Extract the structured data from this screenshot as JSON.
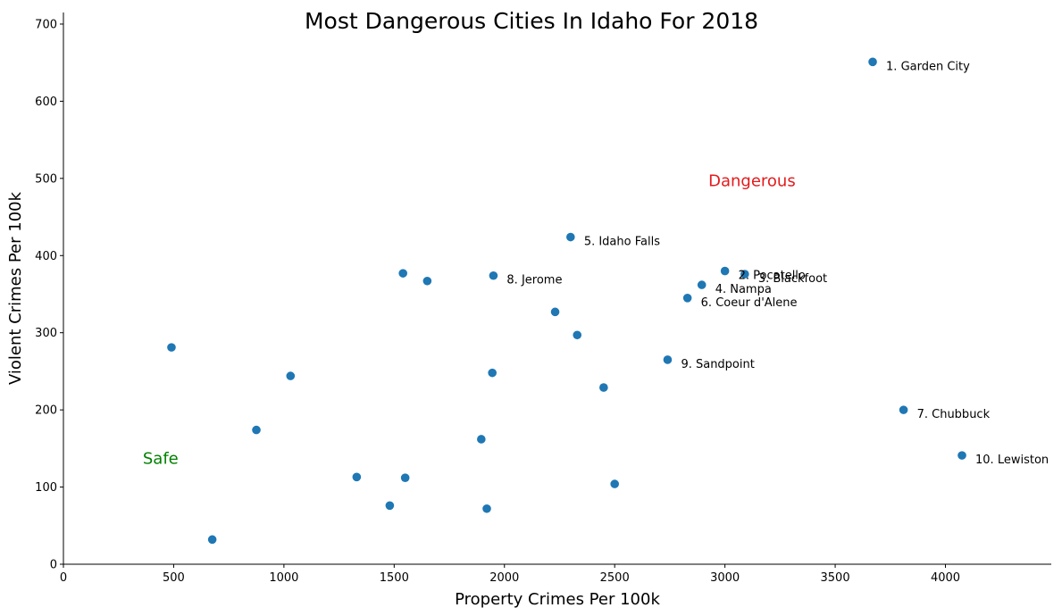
{
  "chart_data": {
    "type": "scatter",
    "title": "Most Dangerous Cities In Idaho For 2018",
    "xlabel": "Property Crimes Per 100k",
    "ylabel": "Violent Crimes Per 100k",
    "xlim": [
      0,
      4480
    ],
    "ylim": [
      0,
      715
    ],
    "xticks": [
      0,
      500,
      1000,
      1500,
      2000,
      2500,
      3000,
      3500,
      4000
    ],
    "yticks": [
      0,
      100,
      200,
      300,
      400,
      500,
      600,
      700
    ],
    "grid": false,
    "point_color": "#1f77b4",
    "points": [
      {
        "x": 3670,
        "y": 651,
        "label": "1. Garden City"
      },
      {
        "x": 3000,
        "y": 380,
        "label": "2. Pocatello"
      },
      {
        "x": 3090,
        "y": 376,
        "label": "3. Blackfoot"
      },
      {
        "x": 2895,
        "y": 362,
        "label": "4. Nampa"
      },
      {
        "x": 2300,
        "y": 424,
        "label": "5. Idaho Falls"
      },
      {
        "x": 2830,
        "y": 345,
        "label": "6. Coeur d'Alene"
      },
      {
        "x": 3810,
        "y": 200,
        "label": "7. Chubbuck"
      },
      {
        "x": 1950,
        "y": 374,
        "label": "8. Jerome"
      },
      {
        "x": 2740,
        "y": 265,
        "label": "9. Sandpoint"
      },
      {
        "x": 4075,
        "y": 141,
        "label": "10. Lewiston"
      },
      {
        "x": 1540,
        "y": 377,
        "label": ""
      },
      {
        "x": 1650,
        "y": 367,
        "label": ""
      },
      {
        "x": 2230,
        "y": 327,
        "label": ""
      },
      {
        "x": 2330,
        "y": 297,
        "label": ""
      },
      {
        "x": 490,
        "y": 281,
        "label": ""
      },
      {
        "x": 1030,
        "y": 244,
        "label": ""
      },
      {
        "x": 1945,
        "y": 248,
        "label": ""
      },
      {
        "x": 2450,
        "y": 229,
        "label": ""
      },
      {
        "x": 875,
        "y": 174,
        "label": ""
      },
      {
        "x": 1895,
        "y": 162,
        "label": ""
      },
      {
        "x": 1330,
        "y": 113,
        "label": ""
      },
      {
        "x": 1550,
        "y": 112,
        "label": ""
      },
      {
        "x": 2500,
        "y": 104,
        "label": ""
      },
      {
        "x": 1480,
        "y": 76,
        "label": ""
      },
      {
        "x": 1920,
        "y": 72,
        "label": ""
      },
      {
        "x": 675,
        "y": 32,
        "label": ""
      }
    ],
    "annotations": [
      {
        "text": "Dangerous",
        "x": 2925,
        "y": 497,
        "color": "#e41a1c"
      },
      {
        "text": "Safe",
        "x": 360,
        "y": 137,
        "color": "#008000"
      }
    ]
  }
}
